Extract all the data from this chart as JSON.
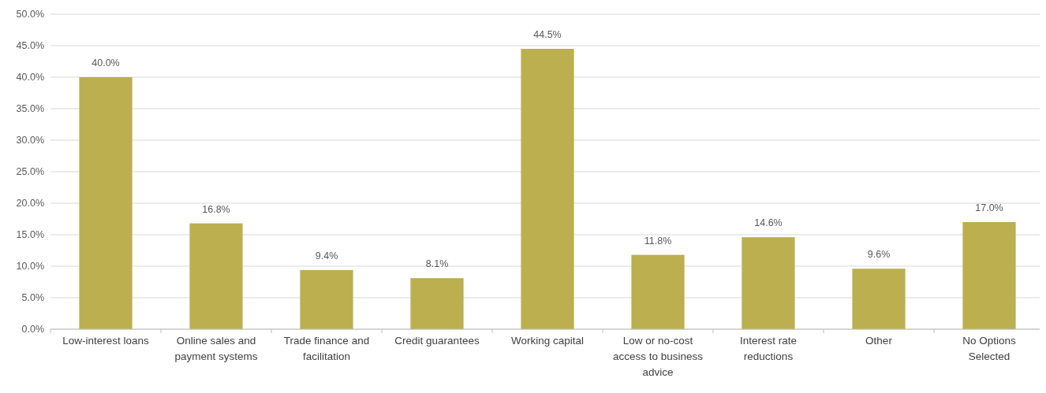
{
  "chart_data": {
    "type": "bar",
    "categories": [
      "Low-interest loans",
      "Online sales and payment systems",
      "Trade finance and facilitation",
      "Credit guarantees",
      "Working capital",
      "Low or no-cost access to business advice",
      "Interest rate reductions",
      "Other",
      "No Options Selected"
    ],
    "values": [
      40.0,
      16.8,
      9.4,
      8.1,
      44.5,
      11.8,
      14.6,
      9.6,
      17.0
    ],
    "value_labels": [
      "40.0%",
      "16.8%",
      "9.4%",
      "8.1%",
      "44.5%",
      "11.8%",
      "14.6%",
      "9.6%",
      "17.0%"
    ],
    "color": "#bbaf4f",
    "ylim": [
      0,
      50
    ],
    "yticks": [
      {
        "value": 0,
        "label": "0.0%"
      },
      {
        "value": 5,
        "label": "5.0%"
      },
      {
        "value": 10,
        "label": "10.0%"
      },
      {
        "value": 15,
        "label": "15.0%"
      },
      {
        "value": 20,
        "label": "20.0%"
      },
      {
        "value": 25,
        "label": "25.0%"
      },
      {
        "value": 30,
        "label": "30.0%"
      },
      {
        "value": 35,
        "label": "35.0%"
      },
      {
        "value": 40,
        "label": "40.0%"
      },
      {
        "value": 45,
        "label": "45.0%"
      },
      {
        "value": 50,
        "label": "50.0%"
      }
    ],
    "grid": "y"
  }
}
